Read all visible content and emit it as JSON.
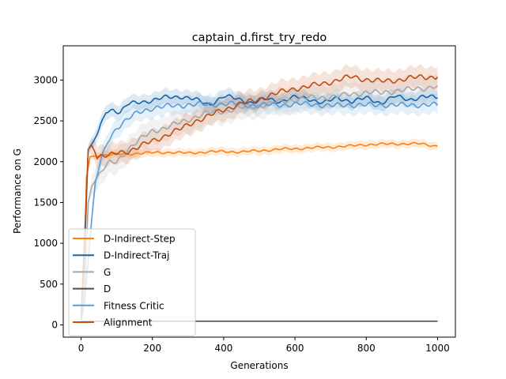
{
  "chart_data": {
    "type": "line",
    "title": "captain_d.first_try_redo",
    "xlabel": "Generations",
    "ylabel": "Performance on G",
    "xlim": [
      -50,
      1050
    ],
    "ylim": [
      -150,
      3420
    ],
    "xticks": [
      0,
      200,
      400,
      600,
      800,
      1000
    ],
    "yticks": [
      0,
      500,
      1000,
      1500,
      2000,
      2500,
      3000
    ],
    "grid": false,
    "legend_position": "lower-left",
    "series": [
      {
        "name": "D-Indirect-Step",
        "color": "#ff7f0e",
        "band": 50,
        "points": [
          [
            0,
            50
          ],
          [
            8,
            300
          ],
          [
            15,
            1800
          ],
          [
            25,
            2060
          ],
          [
            40,
            2070
          ],
          [
            60,
            2080
          ],
          [
            100,
            2090
          ],
          [
            150,
            2100
          ],
          [
            200,
            2110
          ],
          [
            250,
            2115
          ],
          [
            300,
            2105
          ],
          [
            350,
            2120
          ],
          [
            400,
            2125
          ],
          [
            450,
            2120
          ],
          [
            500,
            2135
          ],
          [
            550,
            2150
          ],
          [
            600,
            2160
          ],
          [
            650,
            2170
          ],
          [
            700,
            2180
          ],
          [
            750,
            2190
          ],
          [
            800,
            2210
          ],
          [
            850,
            2215
          ],
          [
            900,
            2220
          ],
          [
            950,
            2220
          ],
          [
            1000,
            2190
          ]
        ]
      },
      {
        "name": "D-Indirect-Traj",
        "color": "#1764ab",
        "band": 90,
        "points": [
          [
            0,
            80
          ],
          [
            10,
            900
          ],
          [
            20,
            2150
          ],
          [
            35,
            2250
          ],
          [
            50,
            2380
          ],
          [
            70,
            2620
          ],
          [
            90,
            2640
          ],
          [
            110,
            2600
          ],
          [
            130,
            2700
          ],
          [
            160,
            2730
          ],
          [
            200,
            2750
          ],
          [
            240,
            2790
          ],
          [
            280,
            2800
          ],
          [
            320,
            2760
          ],
          [
            360,
            2700
          ],
          [
            400,
            2800
          ],
          [
            440,
            2770
          ],
          [
            480,
            2720
          ],
          [
            520,
            2770
          ],
          [
            560,
            2740
          ],
          [
            600,
            2790
          ],
          [
            640,
            2770
          ],
          [
            680,
            2720
          ],
          [
            720,
            2780
          ],
          [
            760,
            2740
          ],
          [
            800,
            2780
          ],
          [
            840,
            2720
          ],
          [
            880,
            2800
          ],
          [
            920,
            2760
          ],
          [
            960,
            2800
          ],
          [
            1000,
            2780
          ]
        ]
      },
      {
        "name": "G",
        "color": "#a6a6a6",
        "band": 150,
        "points": [
          [
            0,
            60
          ],
          [
            10,
            400
          ],
          [
            20,
            1500
          ],
          [
            30,
            1700
          ],
          [
            45,
            1800
          ],
          [
            60,
            1900
          ],
          [
            80,
            1980
          ],
          [
            100,
            2000
          ],
          [
            130,
            2150
          ],
          [
            160,
            2250
          ],
          [
            200,
            2380
          ],
          [
            240,
            2420
          ],
          [
            280,
            2480
          ],
          [
            320,
            2550
          ],
          [
            360,
            2600
          ],
          [
            400,
            2620
          ],
          [
            440,
            2650
          ],
          [
            480,
            2680
          ],
          [
            520,
            2700
          ],
          [
            560,
            2740
          ],
          [
            600,
            2760
          ],
          [
            640,
            2780
          ],
          [
            680,
            2790
          ],
          [
            720,
            2800
          ],
          [
            760,
            2830
          ],
          [
            800,
            2850
          ],
          [
            840,
            2840
          ],
          [
            880,
            2870
          ],
          [
            920,
            2880
          ],
          [
            960,
            2900
          ],
          [
            1000,
            2930
          ]
        ]
      },
      {
        "name": "D",
        "color": "#4d4d4d",
        "band": 0,
        "points": [
          [
            0,
            45
          ],
          [
            1000,
            45
          ]
        ]
      },
      {
        "name": "Fitness Critic",
        "color": "#5a9bd4",
        "band": 110,
        "points": [
          [
            0,
            40
          ],
          [
            10,
            300
          ],
          [
            20,
            800
          ],
          [
            30,
            1300
          ],
          [
            40,
            1750
          ],
          [
            55,
            2000
          ],
          [
            75,
            2250
          ],
          [
            100,
            2420
          ],
          [
            130,
            2520
          ],
          [
            160,
            2600
          ],
          [
            200,
            2660
          ],
          [
            250,
            2680
          ],
          [
            300,
            2700
          ],
          [
            350,
            2700
          ],
          [
            400,
            2710
          ],
          [
            450,
            2700
          ],
          [
            500,
            2690
          ],
          [
            550,
            2700
          ],
          [
            600,
            2700
          ],
          [
            650,
            2710
          ],
          [
            700,
            2680
          ],
          [
            750,
            2700
          ],
          [
            800,
            2690
          ],
          [
            850,
            2700
          ],
          [
            900,
            2690
          ],
          [
            950,
            2700
          ],
          [
            1000,
            2690
          ]
        ]
      },
      {
        "name": "Alignment",
        "color": "#c24b0f",
        "band": 130,
        "points": [
          [
            0,
            80
          ],
          [
            10,
            1100
          ],
          [
            20,
            2150
          ],
          [
            30,
            2200
          ],
          [
            45,
            2060
          ],
          [
            60,
            2080
          ],
          [
            80,
            2070
          ],
          [
            100,
            2100
          ],
          [
            130,
            2130
          ],
          [
            160,
            2180
          ],
          [
            200,
            2250
          ],
          [
            240,
            2330
          ],
          [
            280,
            2400
          ],
          [
            320,
            2500
          ],
          [
            360,
            2560
          ],
          [
            400,
            2640
          ],
          [
            440,
            2700
          ],
          [
            480,
            2740
          ],
          [
            520,
            2800
          ],
          [
            560,
            2850
          ],
          [
            600,
            2900
          ],
          [
            640,
            2920
          ],
          [
            680,
            2960
          ],
          [
            720,
            3000
          ],
          [
            760,
            3040
          ],
          [
            800,
            3010
          ],
          [
            840,
            2980
          ],
          [
            880,
            3000
          ],
          [
            920,
            3020
          ],
          [
            960,
            3040
          ],
          [
            1000,
            3040
          ]
        ]
      }
    ]
  }
}
